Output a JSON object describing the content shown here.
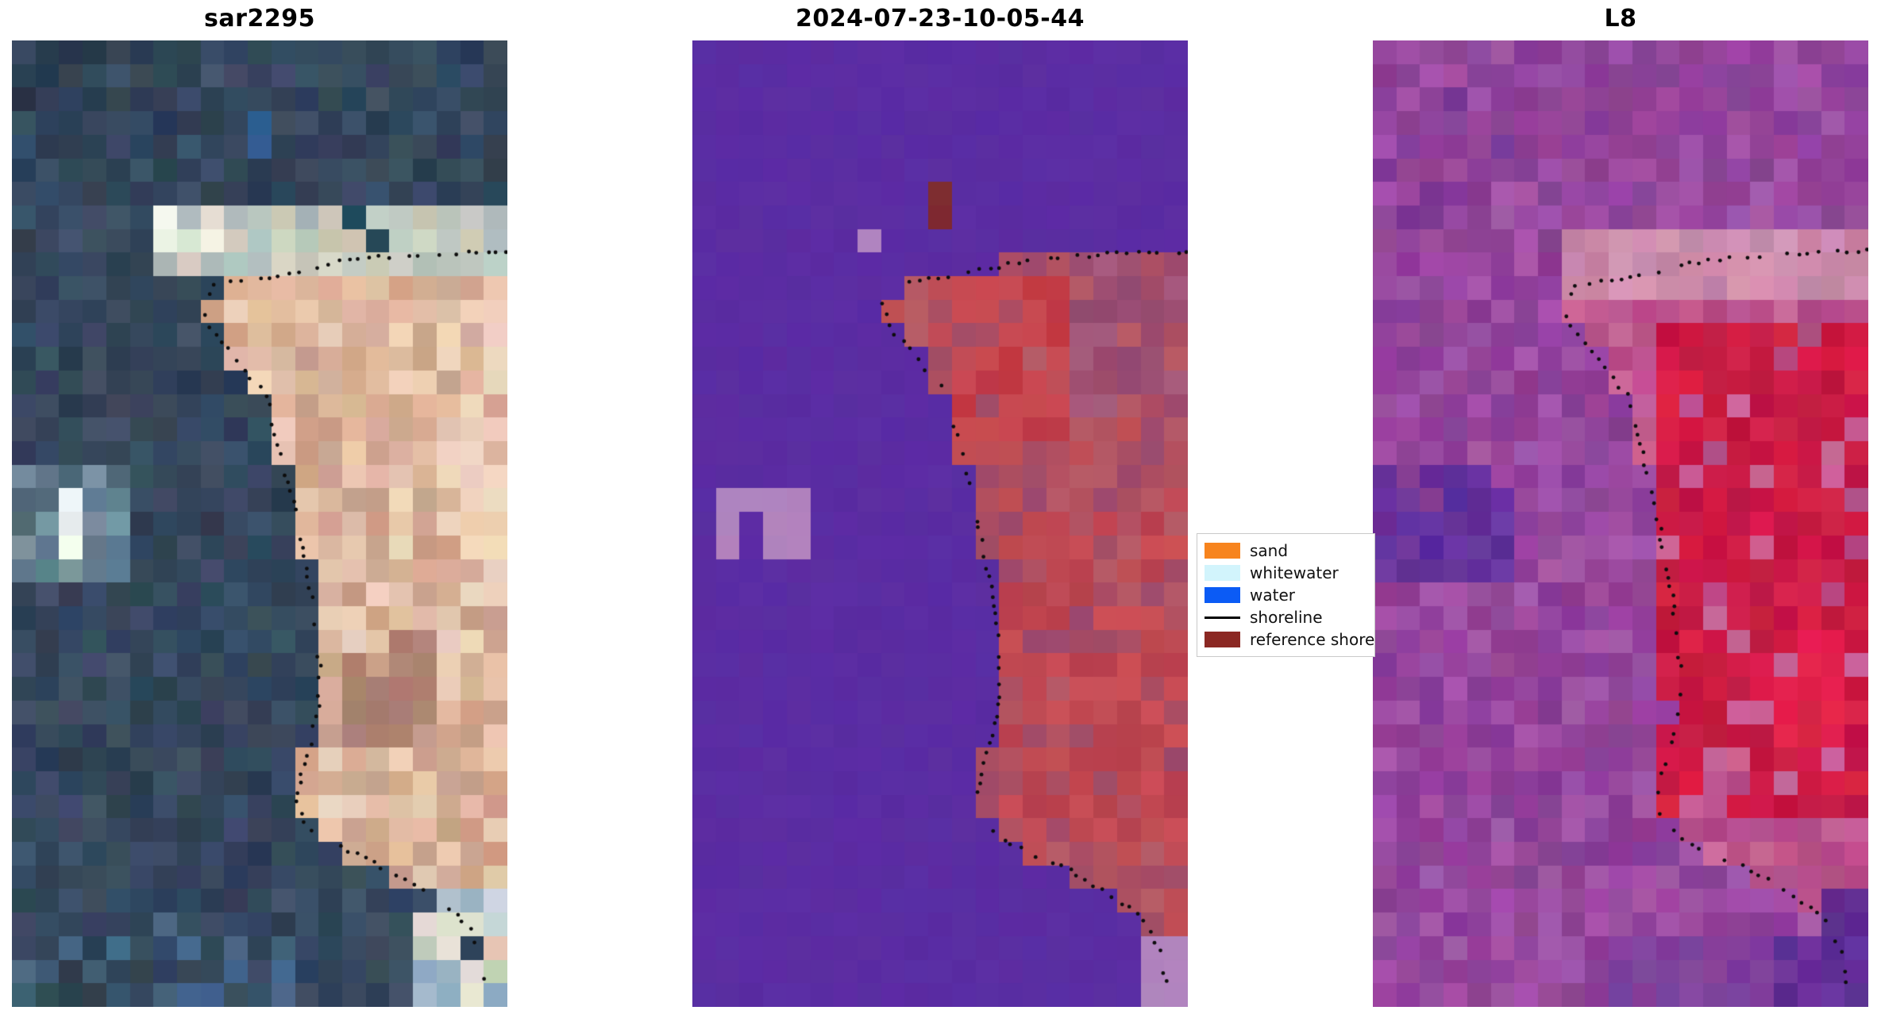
{
  "chart_data": {
    "type": "heatmap",
    "panels": [
      {
        "title": "sar2295",
        "seed": 13,
        "grid": {
          "cols": 21,
          "rows": 41
        },
        "noise": 8,
        "water_palette": [
          "#36475b",
          "#3b4d61",
          "#314257",
          "#2d3e52",
          "#40516a",
          "#33465e",
          "#3a4e66",
          "#2f4459"
        ],
        "land_palette": [
          "#d9b29a",
          "#e2bda4",
          "#d0a68e",
          "#e8c9b0",
          "#caa089",
          "#eed3bd"
        ],
        "zones": [
          {
            "x0": 0.0,
            "x1": 0.18,
            "y0": 0.0,
            "y1": 0.1,
            "p": 0.35,
            "palette": [
              "#27374b"
            ]
          },
          {
            "x0": 0.455,
            "x1": 0.505,
            "y0": 0.085,
            "y1": 0.125,
            "p": 1,
            "palette": [
              "#2e5f91"
            ]
          },
          {
            "x0": 0.265,
            "x1": 1.0,
            "y0": 0.167,
            "y1": 0.25,
            "p": 1,
            "palette": [
              "#c3cbc6",
              "#d4d2c2",
              "#aab8b6",
              "#cbc5b4",
              "#b4c2bd"
            ]
          },
          {
            "x0": 0.3,
            "x1": 0.45,
            "y0": 0.172,
            "y1": 0.228,
            "p": 0.9,
            "palette": [
              "#eaeae0",
              "#f2f1e8",
              "#dfe3d8"
            ]
          },
          {
            "x0": 0.66,
            "x1": 0.77,
            "y0": 0.163,
            "y1": 0.212,
            "p": 0.5,
            "palette": [
              "#20505c"
            ]
          },
          {
            "x0": 0.45,
            "x1": 0.8,
            "y0": 0.255,
            "y1": 0.33,
            "p": 0.6,
            "palette": [
              "#e3bca3",
              "#dcb49a"
            ]
          },
          {
            "x0": 0.66,
            "x1": 0.88,
            "y0": 0.6,
            "y1": 0.735,
            "p": 0.65,
            "palette": [
              "#b28776",
              "#aa8071"
            ]
          },
          {
            "x0": 0.92,
            "x1": 1.0,
            "y0": 0.26,
            "y1": 0.62,
            "p": 0.5,
            "palette": [
              "#f0d6c0"
            ]
          },
          {
            "x0": 0.01,
            "x1": 0.23,
            "y0": 0.447,
            "y1": 0.553,
            "p": 0.95,
            "palette": [
              "#78939f",
              "#5e7d8e",
              "#4d6778"
            ]
          },
          {
            "x0": 0.085,
            "x1": 0.165,
            "y0": 0.473,
            "y1": 0.527,
            "p": 1,
            "palette": [
              "#f5fbf3",
              "#e9f3ec"
            ]
          },
          {
            "x0": 0.8,
            "x1": 1.0,
            "y0": 0.885,
            "y1": 1.0,
            "p": 0.9,
            "palette": [
              "#ccd5de",
              "#e4e1d4",
              "#abbfcd",
              "#c2d3b4",
              "#93adbf"
            ]
          },
          {
            "x0": 0.0,
            "x1": 0.55,
            "y0": 0.9,
            "y1": 1.0,
            "p": 0.3,
            "palette": [
              "#3f5c77",
              "#48678a"
            ]
          }
        ]
      },
      {
        "title": "2024-07-23-10-05-44",
        "seed": 7,
        "grid": {
          "cols": 21,
          "rows": 41
        },
        "noise": 3,
        "water_palette": [
          "#5b2da3"
        ],
        "land_palette": [
          "#ab4e63",
          "#b35261",
          "#9d4a6d",
          "#c14e56",
          "#a34c67",
          "#b75b66"
        ],
        "zones": [
          {
            "x0": 0.47,
            "x1": 0.515,
            "y0": 0.158,
            "y1": 0.188,
            "p": 1,
            "palette": [
              "#7c2b33"
            ]
          },
          {
            "x0": 0.315,
            "x1": 0.36,
            "y0": 0.185,
            "y1": 0.212,
            "p": 1,
            "palette": [
              "#b184bf"
            ]
          },
          {
            "x0": 0.52,
            "x1": 0.76,
            "y0": 0.25,
            "y1": 0.42,
            "p": 0.85,
            "palette": [
              "#c23943",
              "#ca4a52",
              "#bd3a46"
            ]
          },
          {
            "x0": 0.76,
            "x1": 1.0,
            "y0": 0.215,
            "y1": 0.4,
            "p": 0.7,
            "palette": [
              "#9d5074",
              "#a65b7e",
              "#934a70"
            ]
          },
          {
            "x0": 0.62,
            "x1": 1.0,
            "y0": 0.5,
            "y1": 0.82,
            "p": 0.55,
            "palette": [
              "#c04751",
              "#b8414e",
              "#cb4f57"
            ]
          },
          {
            "x0": 0.0,
            "x1": 1.0,
            "y0": 0.922,
            "y1": 1.0,
            "p": 1,
            "palette": [
              "#5b2da3"
            ]
          },
          {
            "x0": 0.885,
            "x1": 1.0,
            "y0": 0.935,
            "y1": 1.0,
            "p": 1,
            "palette": [
              "#b184bf"
            ]
          },
          {
            "x0": 0.056,
            "x1": 0.218,
            "y0": 0.458,
            "y1": 0.497,
            "p": 1,
            "palette": [
              "#b184bf"
            ]
          },
          {
            "x0": 0.056,
            "x1": 0.115,
            "y0": 0.497,
            "y1": 0.536,
            "p": 1,
            "palette": [
              "#b184bf"
            ]
          },
          {
            "x0": 0.135,
            "x1": 0.218,
            "y0": 0.497,
            "y1": 0.534,
            "p": 1,
            "palette": [
              "#b184bf"
            ]
          }
        ]
      },
      {
        "title": "L8",
        "seed": 29,
        "grid": {
          "cols": 21,
          "rows": 41
        },
        "noise": 8,
        "water_palette": [
          "#934299",
          "#9c4aa3",
          "#8c3f96",
          "#a352a9",
          "#8a3d93",
          "#97469d",
          "#a557a9",
          "#8e4197"
        ],
        "land_palette": [
          "#c0558f",
          "#b84e89",
          "#c96295",
          "#b34a85",
          "#cb6698"
        ],
        "zones": [
          {
            "x0": 0.0,
            "x1": 0.5,
            "y0": 0.03,
            "y1": 0.2,
            "p": 0.15,
            "palette": [
              "#7c3795"
            ]
          },
          {
            "x0": 0.37,
            "x1": 1.0,
            "y0": 0.205,
            "y1": 0.278,
            "p": 1,
            "palette": [
              "#cd8cab",
              "#d595b4",
              "#c583a5"
            ]
          },
          {
            "x0": 0.58,
            "x1": 1.0,
            "y0": 0.285,
            "y1": 0.8,
            "p": 0.85,
            "palette": [
              "#d01d47",
              "#c61a44",
              "#da2149",
              "#c11540"
            ]
          },
          {
            "x0": 0.8,
            "x1": 0.95,
            "y0": 0.6,
            "y1": 0.72,
            "p": 0.8,
            "palette": [
              "#e2214f"
            ]
          },
          {
            "x0": 0.0,
            "x1": 0.27,
            "y0": 0.43,
            "y1": 0.55,
            "p": 0.9,
            "palette": [
              "#5b2b97",
              "#64309c",
              "#6e36a1"
            ]
          },
          {
            "x0": 0.5,
            "x1": 0.85,
            "y0": 0.925,
            "y1": 1.0,
            "p": 0.9,
            "palette": [
              "#7b3d9d",
              "#85439f"
            ]
          },
          {
            "x0": 0.82,
            "x1": 1.0,
            "y0": 0.925,
            "y1": 1.0,
            "p": 1,
            "palette": [
              "#5e2c91",
              "#6a339c"
            ]
          },
          {
            "x0": 0.905,
            "x1": 1.0,
            "y0": 0.885,
            "y1": 0.925,
            "p": 0.8,
            "palette": [
              "#5e2c91"
            ]
          }
        ]
      }
    ],
    "land_top": [
      [
        0.41,
        0.253
      ],
      [
        0.52,
        0.245
      ],
      [
        0.6,
        0.236
      ],
      [
        0.68,
        0.227
      ],
      [
        0.76,
        0.224
      ],
      [
        0.84,
        0.221
      ],
      [
        0.92,
        0.22
      ],
      [
        1.0,
        0.218
      ]
    ],
    "land_edge": [
      [
        0.253,
        0.41
      ],
      [
        0.272,
        0.386
      ],
      [
        0.296,
        0.395
      ],
      [
        0.32,
        0.44
      ],
      [
        0.35,
        0.482
      ],
      [
        0.367,
        0.516
      ],
      [
        0.398,
        0.528
      ],
      [
        0.428,
        0.544
      ],
      [
        0.468,
        0.563
      ],
      [
        0.515,
        0.583
      ],
      [
        0.556,
        0.598
      ],
      [
        0.604,
        0.612
      ],
      [
        0.648,
        0.622
      ],
      [
        0.688,
        0.617
      ],
      [
        0.728,
        0.601
      ],
      [
        0.76,
        0.586
      ],
      [
        0.788,
        0.576
      ],
      [
        0.81,
        0.589
      ],
      [
        0.826,
        0.628
      ],
      [
        0.839,
        0.678
      ],
      [
        0.851,
        0.728
      ],
      [
        0.864,
        0.778
      ],
      [
        0.879,
        0.828
      ],
      [
        0.892,
        0.868
      ],
      [
        0.904,
        0.898
      ],
      [
        0.921,
        0.923
      ],
      [
        0.943,
        0.943
      ],
      [
        0.963,
        0.953
      ],
      [
        0.983,
        0.96
      ],
      [
        1.0,
        0.962
      ]
    ],
    "shoreline": {
      "points": [
        [
          1.0,
          0.218
        ],
        [
          0.92,
          0.22
        ],
        [
          0.84,
          0.221
        ],
        [
          0.76,
          0.224
        ],
        [
          0.68,
          0.227
        ],
        [
          0.6,
          0.236
        ],
        [
          0.52,
          0.245
        ],
        [
          0.44,
          0.25
        ],
        [
          0.41,
          0.253
        ],
        [
          0.386,
          0.272
        ],
        [
          0.395,
          0.296
        ],
        [
          0.44,
          0.32
        ],
        [
          0.482,
          0.35
        ],
        [
          0.516,
          0.367
        ],
        [
          0.528,
          0.398
        ],
        [
          0.544,
          0.428
        ],
        [
          0.563,
          0.468
        ],
        [
          0.583,
          0.515
        ],
        [
          0.598,
          0.556
        ],
        [
          0.612,
          0.604
        ],
        [
          0.622,
          0.648
        ],
        [
          0.617,
          0.688
        ],
        [
          0.601,
          0.728
        ],
        [
          0.586,
          0.76
        ],
        [
          0.576,
          0.788
        ],
        [
          0.589,
          0.81
        ],
        [
          0.628,
          0.826
        ],
        [
          0.678,
          0.839
        ],
        [
          0.728,
          0.851
        ],
        [
          0.778,
          0.864
        ],
        [
          0.828,
          0.879
        ],
        [
          0.868,
          0.892
        ],
        [
          0.898,
          0.904
        ],
        [
          0.923,
          0.921
        ],
        [
          0.943,
          0.943
        ],
        [
          0.953,
          0.963
        ],
        [
          0.96,
          0.983
        ]
      ],
      "dot_color": "#0d0d0d",
      "dot_radius": 2.4,
      "dot_step": 13,
      "dot_keep": 0.75,
      "jitter": 2.5
    },
    "legend": {
      "entries": [
        {
          "label": "sand",
          "color": "#f7841e",
          "type": "patch"
        },
        {
          "label": "whitewater",
          "color": "#d2f4fc",
          "type": "patch"
        },
        {
          "label": "water",
          "color": "#0b5bf5",
          "type": "patch"
        },
        {
          "label": "shoreline",
          "color": "#000000",
          "type": "line"
        },
        {
          "label": "reference shore",
          "color": "#8b2823",
          "type": "patch"
        }
      ]
    }
  }
}
